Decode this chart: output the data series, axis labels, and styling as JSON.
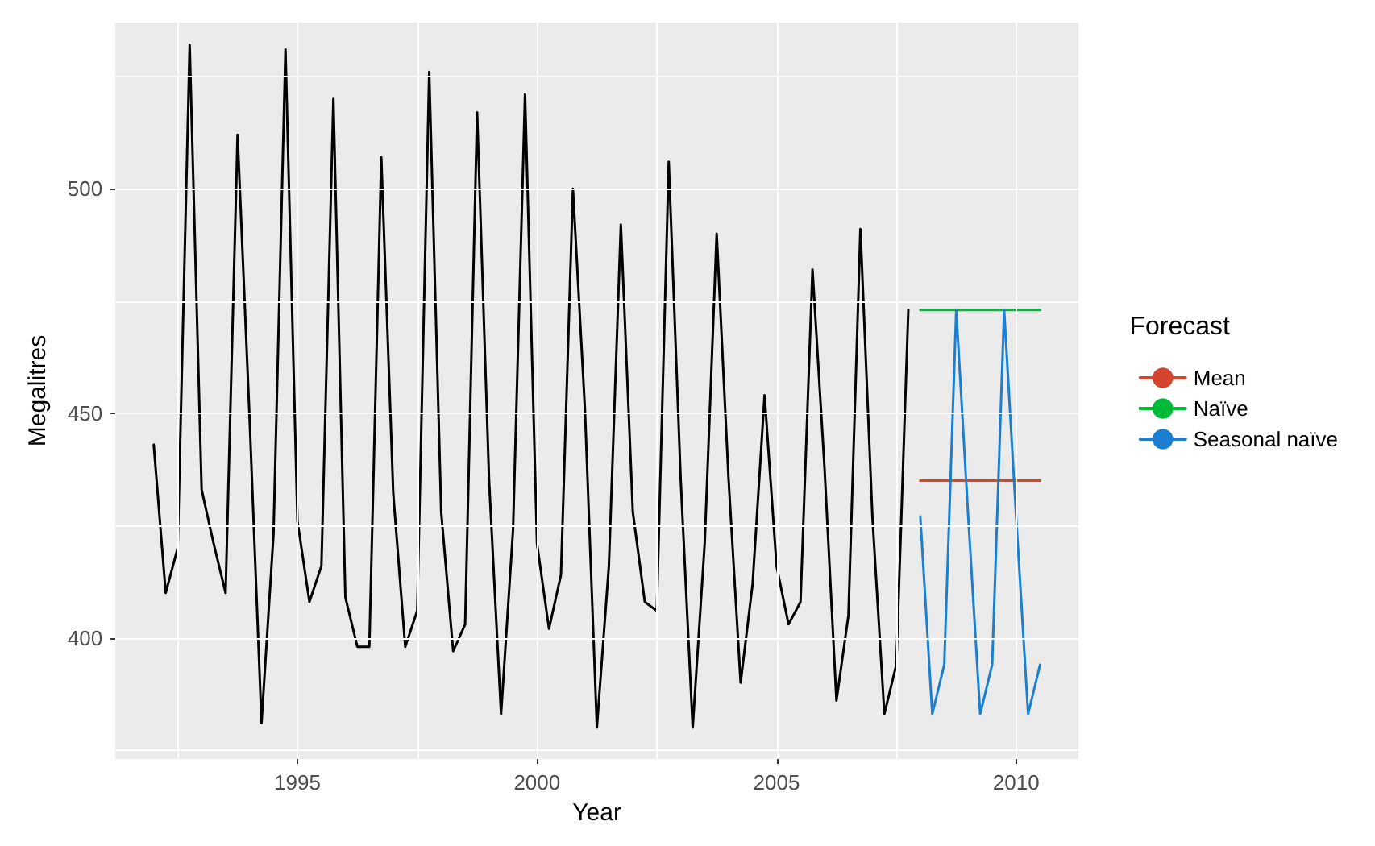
{
  "chart_data": {
    "type": "line",
    "xlabel": "Year",
    "ylabel": "Megalitres",
    "legend_title": "Forecast",
    "legend": "right",
    "grid": true,
    "marker": "none",
    "line_style": "solid",
    "xlim": [
      1991.2,
      2011.3
    ],
    "xticks": [
      {
        "value": 1992.5,
        "label": null
      },
      1995,
      {
        "value": 1997.5,
        "label": null
      },
      2000,
      {
        "value": 2002.5,
        "label": null
      },
      2005,
      {
        "value": 2007.5,
        "label": null
      },
      2010
    ],
    "ylim": [
      373,
      537
    ],
    "yticks": [
      {
        "value": 375,
        "label": null
      },
      400,
      {
        "value": 425,
        "label": null
      },
      450,
      {
        "value": 475,
        "label": null
      },
      500,
      {
        "value": 525,
        "label": null
      }
    ],
    "series": [
      {
        "color": "#000000",
        "x": [
          1992,
          1992.25,
          1992.5,
          1992.75,
          1993,
          1993.25,
          1993.5,
          1993.75,
          1994,
          1994.25,
          1994.5,
          1994.75,
          1995,
          1995.25,
          1995.5,
          1995.75,
          1996,
          1996.25,
          1996.5,
          1996.75,
          1997,
          1997.25,
          1997.5,
          1997.75,
          1998,
          1998.25,
          1998.5,
          1998.75,
          1999,
          1999.25,
          1999.5,
          1999.75,
          2000,
          2000.25,
          2000.5,
          2000.75,
          2001,
          2001.25,
          2001.5,
          2001.75,
          2002,
          2002.25,
          2002.5,
          2002.75,
          2003,
          2003.25,
          2003.5,
          2003.75,
          2004,
          2004.25,
          2004.5,
          2004.75,
          2005,
          2005.25,
          2005.5,
          2005.75,
          2006,
          2006.25,
          2006.5,
          2006.75,
          2007,
          2007.25,
          2007.5,
          2007.75
        ],
        "values": [
          443,
          410,
          420,
          532,
          433,
          421,
          410,
          512,
          449,
          381,
          423,
          531,
          426,
          408,
          416,
          520,
          409,
          398,
          398,
          507,
          432,
          398,
          406,
          526,
          428,
          397,
          403,
          517,
          435,
          383,
          424,
          521,
          421,
          402,
          414,
          500,
          451,
          380,
          416,
          492,
          428,
          408,
          406,
          506,
          435,
          380,
          421,
          490,
          435,
          390,
          412,
          454,
          416,
          403,
          408,
          482,
          438,
          386,
          405,
          491,
          427,
          383,
          394,
          473
        ]
      },
      {
        "name": "Mean",
        "color": "#d7442e",
        "x": [
          2008,
          2008.25,
          2008.5,
          2008.75,
          2009,
          2009.25,
          2009.5,
          2009.75,
          2010,
          2010.25,
          2010.5
        ],
        "values": [
          435,
          435,
          435,
          435,
          435,
          435,
          435,
          435,
          435,
          435,
          435
        ]
      },
      {
        "name": "Naïve",
        "color": "#00ba38",
        "x": [
          2008,
          2008.25,
          2008.5,
          2008.75,
          2009,
          2009.25,
          2009.5,
          2009.75,
          2010,
          2010.25,
          2010.5
        ],
        "values": [
          473,
          473,
          473,
          473,
          473,
          473,
          473,
          473,
          473,
          473,
          473
        ]
      },
      {
        "name": "Seasonal naïve",
        "color": "#1b7fd1",
        "x": [
          2008,
          2008.25,
          2008.5,
          2008.75,
          2009,
          2009.25,
          2009.5,
          2009.75,
          2010,
          2010.25,
          2010.5
        ],
        "values": [
          427,
          383,
          394,
          473,
          427,
          383,
          394,
          473,
          427,
          383,
          394
        ]
      }
    ]
  }
}
